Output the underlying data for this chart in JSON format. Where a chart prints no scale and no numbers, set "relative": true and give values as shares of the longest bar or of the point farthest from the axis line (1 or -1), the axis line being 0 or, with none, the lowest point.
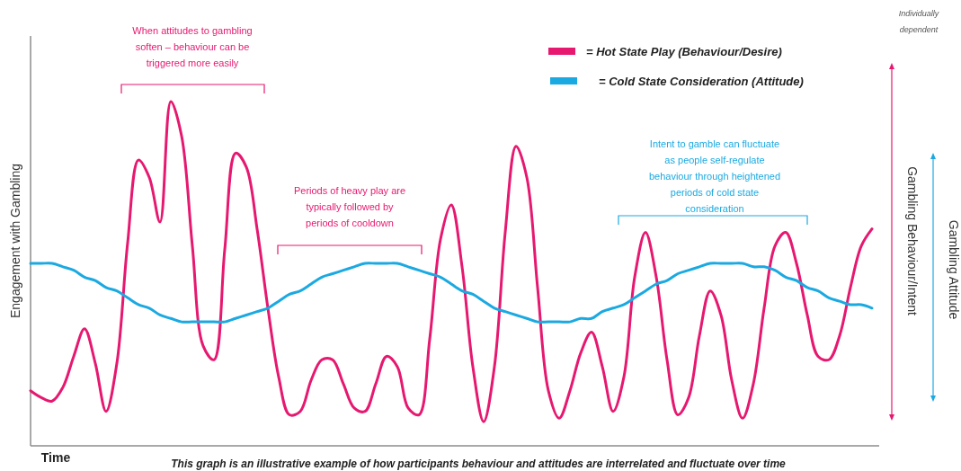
{
  "chart_data": {
    "type": "line",
    "relative": true,
    "legend": "top right",
    "xlabel": "Time",
    "ylabel": "Engagement with Gambling",
    "y2label": "Gambling Behaviour/Intent",
    "categories": [
      null,
      null,
      null,
      null,
      null,
      null,
      null,
      null,
      null,
      null,
      null,
      null,
      null,
      null,
      null,
      null,
      null,
      null,
      null,
      null,
      null,
      null,
      null,
      null,
      null,
      null,
      null,
      null,
      null,
      null,
      null,
      null,
      null,
      null,
      null,
      null,
      null,
      null,
      null,
      null,
      null,
      null,
      null,
      null,
      null,
      null,
      null,
      null,
      null,
      null,
      null,
      null,
      null,
      null,
      null,
      null,
      null,
      null,
      null,
      null,
      null,
      null,
      null,
      null,
      null,
      null,
      null,
      null,
      null,
      null,
      null,
      null,
      null,
      null,
      null,
      null,
      null,
      null,
      null
    ],
    "series": [
      {
        "name": "= Hot State Play (Behaviour/Desire)",
        "color": "#e6186f",
        "values": [
          0.16,
          0.14,
          0.13,
          0.17,
          0.26,
          0.34,
          0.24,
          0.1,
          0.24,
          0.59,
          0.83,
          0.78,
          0.65,
          1,
          0.9,
          0.58,
          0.29,
          0.25,
          0.57,
          0.85,
          0.81,
          0.63,
          0.4,
          0.2,
          0.09,
          0.1,
          0.19,
          0.25,
          0.25,
          0.18,
          0.11,
          0.1,
          0.18,
          0.26,
          0.23,
          0.11,
          0.09,
          0.31,
          0.6,
          0.7,
          0.52,
          0.23,
          0.07,
          0.23,
          0.62,
          0.87,
          0.78,
          0.46,
          0.16,
          0.08,
          0.16,
          0.27,
          0.33,
          0.23,
          0.1,
          0.2,
          0.49,
          0.62,
          0.49,
          0.25,
          0.09,
          0.14,
          0.32,
          0.45,
          0.38,
          0.19,
          0.08,
          0.18,
          0.4,
          0.58,
          0.62,
          0.53,
          0.38,
          0.26,
          0.25,
          0.32,
          0.46,
          0.58,
          0.63
        ]
      },
      {
        "name": "= Cold State Consideration (Attitude)",
        "color": "#1ba9e1",
        "values": [
          0.53,
          0.53,
          0.53,
          0.52,
          0.51,
          0.49,
          0.48,
          0.46,
          0.45,
          0.43,
          0.41,
          0.4,
          0.38,
          0.37,
          0.36,
          0.36,
          0.36,
          0.36,
          0.36,
          0.37,
          0.38,
          0.39,
          0.4,
          0.42,
          0.44,
          0.45,
          0.47,
          0.49,
          0.5,
          0.51,
          0.52,
          0.53,
          0.53,
          0.53,
          0.53,
          0.52,
          0.51,
          0.5,
          0.49,
          0.47,
          0.45,
          0.44,
          0.42,
          0.4,
          0.39,
          0.38,
          0.37,
          0.36,
          0.36,
          0.36,
          0.36,
          0.37,
          0.37,
          0.39,
          0.4,
          0.41,
          0.43,
          0.45,
          0.47,
          0.48,
          0.5,
          0.51,
          0.52,
          0.53,
          0.53,
          0.53,
          0.53,
          0.52,
          0.52,
          0.51,
          0.49,
          0.48,
          0.46,
          0.45,
          0.43,
          0.42,
          0.41,
          0.41,
          0.4
        ]
      }
    ],
    "annotations": [
      "When attitudes to gambling soften – behaviour can be triggered more easily",
      "Periods of heavy play are typically followed by periods of cooldown",
      "Intent to gamble can fluctuate as people self-regulate behaviour through heightened periods of cold state consideration",
      "Individually dependent",
      "Gambling Attitude",
      "This graph is an illustrative example of how participants behaviour and attitudes are interrelated and fluctuate over time"
    ]
  }
}
